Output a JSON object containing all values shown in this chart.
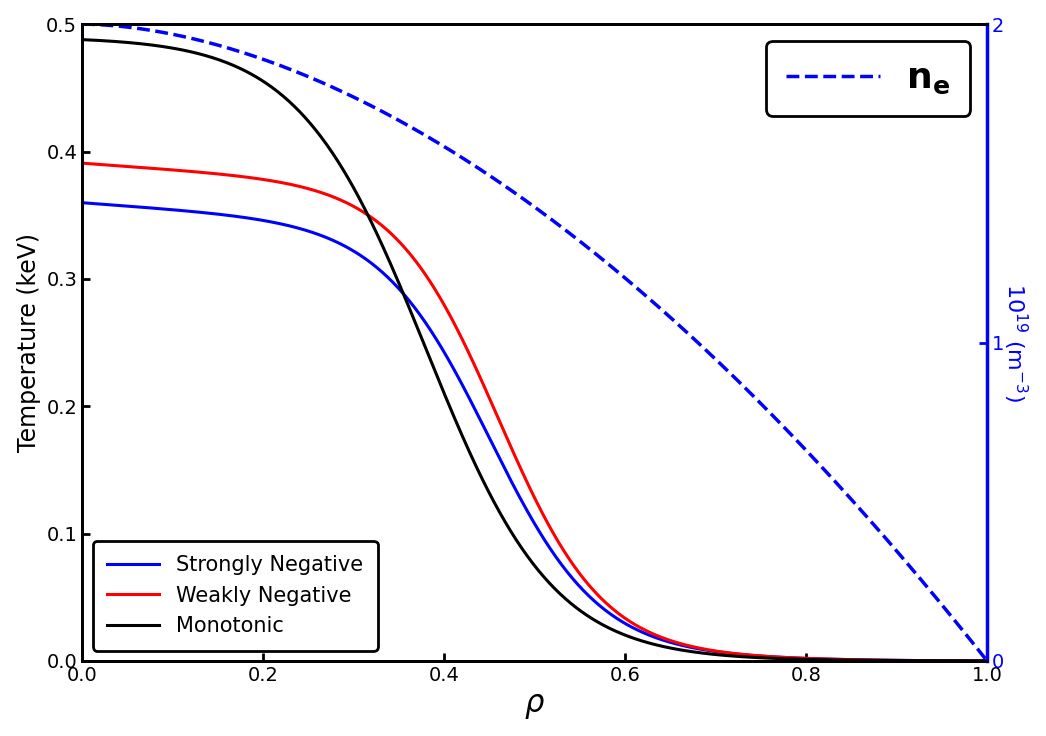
{
  "xlabel": "ρ",
  "ylabel_left": "Temperature (keV)",
  "xlim": [
    0.0,
    1.0
  ],
  "ylim_left": [
    0.0,
    0.5
  ],
  "ylim_right": [
    0.0,
    2.0
  ],
  "xticks": [
    0.0,
    0.2,
    0.4,
    0.6,
    0.8,
    1.0
  ],
  "yticks_left": [
    0.0,
    0.1,
    0.2,
    0.3,
    0.4,
    0.5
  ],
  "yticks_right": [
    0,
    1,
    2
  ],
  "ne_color": "blue",
  "ne_lw": 2.5,
  "right_axis_color": "blue",
  "strongly_negative_color": "blue",
  "weakly_negative_color": "red",
  "monotonic_color": "black",
  "line_lw": 2.2
}
